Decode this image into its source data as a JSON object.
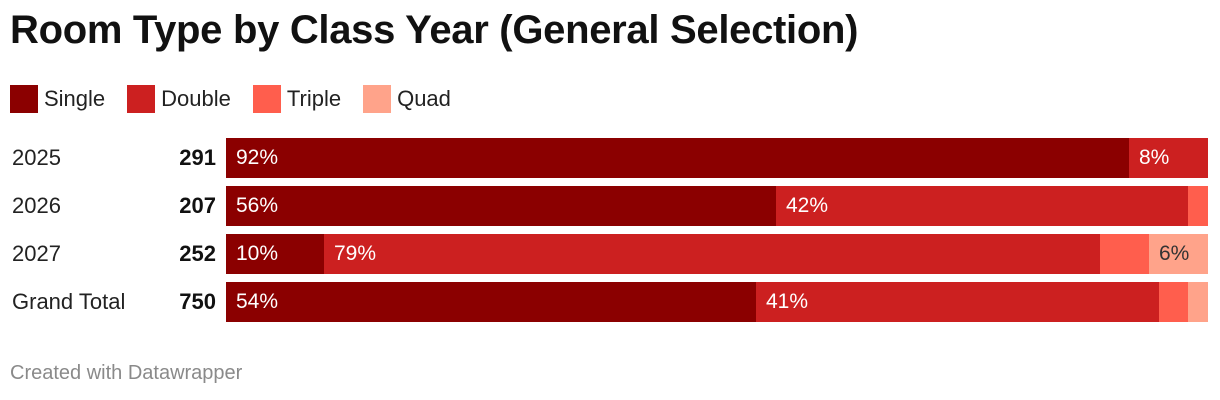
{
  "chart_data": {
    "type": "bar",
    "orientation": "horizontal",
    "stacked": true,
    "normalized": true,
    "title": "Room Type by Class Year (General Selection)",
    "legend_position": "top-left",
    "series": [
      {
        "name": "Single",
        "color": "#8b0000"
      },
      {
        "name": "Double",
        "color": "#cc2020"
      },
      {
        "name": "Triple",
        "color": "#ff5e4d"
      },
      {
        "name": "Quad",
        "color": "#ffa38a"
      }
    ],
    "rows": [
      {
        "label": "2025",
        "total": "291",
        "shares": [
          92,
          8,
          0,
          0
        ],
        "labels": [
          "92%",
          "8%",
          "",
          ""
        ]
      },
      {
        "label": "2026",
        "total": "207",
        "shares": [
          56,
          42,
          2,
          0
        ],
        "labels": [
          "56%",
          "42%",
          "",
          ""
        ]
      },
      {
        "label": "2027",
        "total": "252",
        "shares": [
          10,
          79,
          5,
          6
        ],
        "labels": [
          "10%",
          "79%",
          "",
          "6%"
        ]
      },
      {
        "label": "Grand Total",
        "total": "750",
        "shares": [
          54,
          41,
          3,
          2
        ],
        "labels": [
          "54%",
          "41%",
          "",
          ""
        ]
      }
    ]
  },
  "footer": "Created with Datawrapper"
}
